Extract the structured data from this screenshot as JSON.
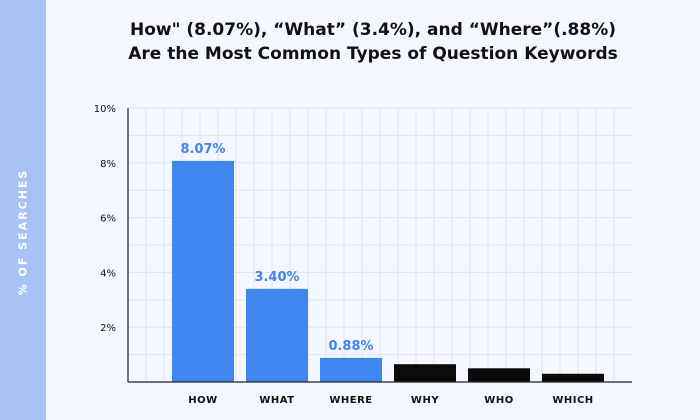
{
  "title": {
    "line1": "How\" (8.07%), “What” (3.4%), and “Where”(.88%)",
    "line2": "Are the Most Common Types of Question Keywords"
  },
  "colors": {
    "highlight": "#3f86ee",
    "other": "#0b0b0b",
    "grid": "#dde3ef",
    "side_band": "#a9c2f6"
  },
  "chart_data": {
    "type": "bar",
    "title": "How\" (8.07%), “What” (3.4%), and “Where”(.88%) Are the Most Common Types of Question Keywords",
    "xlabel": "",
    "ylabel": "% OF SEARCHES",
    "ylim": [
      0,
      10
    ],
    "yticks": [
      "10%",
      "8%",
      "6%",
      "4%",
      "2%"
    ],
    "ytick_values": [
      10,
      8,
      6,
      4,
      2
    ],
    "categories": [
      "HOW",
      "WHAT",
      "WHERE",
      "WHY",
      "WHO",
      "WHICH"
    ],
    "values": [
      8.07,
      3.4,
      0.88,
      0.65,
      0.5,
      0.3
    ],
    "data_labels": [
      "8.07%",
      "3.40%",
      "0.88%",
      "",
      "",
      ""
    ],
    "highlighted": [
      true,
      true,
      true,
      false,
      false,
      false
    ],
    "grid": true,
    "legend": "none"
  }
}
